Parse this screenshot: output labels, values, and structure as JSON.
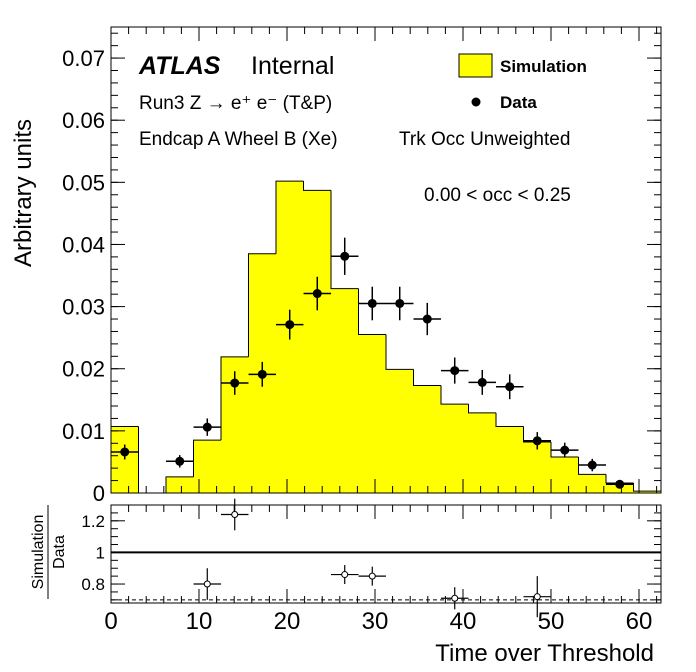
{
  "chart_data": [
    {
      "type": "bar",
      "panel": "main",
      "atlas_label": "ATLAS",
      "atlas_status": "Internal",
      "lines": [
        "Run3 Z → e⁺ e⁻ (T&P)",
        "Endcap A Wheel B (Xe)",
        "Trk Occ Unweighted",
        "0.00 < occ < 0.25"
      ],
      "ylabel": "Arbitrary units",
      "xlabel": "Time over Threshold",
      "xlim": [
        0,
        62.5
      ],
      "ylim": [
        0,
        0.075
      ],
      "yticks": [
        "0",
        "0.01",
        "0.02",
        "0.03",
        "0.04",
        "0.05",
        "0.06",
        "0.07"
      ],
      "legend": {
        "position": "top-right",
        "entries": [
          "Simulation",
          "Data"
        ]
      },
      "simulation": {
        "name": "Simulation",
        "color": "#ffff00",
        "bin_edges": [
          0,
          3.125,
          6.25,
          9.375,
          12.5,
          15.625,
          18.75,
          21.875,
          25,
          28.125,
          31.25,
          34.375,
          37.5,
          40.625,
          43.75,
          46.875,
          50,
          53.125,
          56.25,
          59.375,
          62.5
        ],
        "values": [
          0.0107,
          0.0,
          0.0026,
          0.0085,
          0.0219,
          0.0385,
          0.0502,
          0.0487,
          0.0329,
          0.0255,
          0.0199,
          0.0173,
          0.0143,
          0.0129,
          0.0107,
          0.0082,
          0.0058,
          0.003,
          0.0016,
          0.0003
        ]
      },
      "data": {
        "name": "Data",
        "x": [
          1.56,
          7.81,
          10.94,
          14.06,
          17.19,
          20.31,
          23.44,
          26.56,
          29.69,
          32.81,
          35.94,
          39.06,
          42.19,
          45.31,
          48.44,
          51.56,
          54.69,
          57.81
        ],
        "y": [
          0.0066,
          0.0051,
          0.0106,
          0.0177,
          0.0191,
          0.0271,
          0.0321,
          0.0381,
          0.0305,
          0.0305,
          0.028,
          0.0197,
          0.0178,
          0.0171,
          0.0084,
          0.0069,
          0.0045,
          0.0014
        ],
        "yerr": [
          0.0012,
          0.001,
          0.0014,
          0.0019,
          0.002,
          0.0024,
          0.0027,
          0.003,
          0.0027,
          0.0027,
          0.0026,
          0.0021,
          0.002,
          0.002,
          0.0014,
          0.0012,
          0.001,
          0.0006
        ]
      }
    },
    {
      "type": "scatter",
      "panel": "ratio",
      "ylabel_numerator": "Simulation",
      "ylabel_denominator": "Data",
      "xlabel": "Time over Threshold",
      "xlim": [
        0,
        62.5
      ],
      "ylim": [
        0.68,
        1.3
      ],
      "yticks": [
        "0.8",
        "1",
        "1.2"
      ],
      "xticks": [
        "0",
        "10",
        "20",
        "30",
        "40",
        "50",
        "60"
      ],
      "reference_line": 1.0,
      "dashed_line": 0.7,
      "points": {
        "x": [
          10.94,
          14.06,
          26.56,
          29.69,
          39.06,
          48.44
        ],
        "y": [
          0.8,
          1.24,
          0.86,
          0.85,
          0.71,
          0.72
        ],
        "yerr": [
          0.1,
          0.1,
          0.06,
          0.06,
          0.07,
          0.13
        ]
      }
    }
  ]
}
